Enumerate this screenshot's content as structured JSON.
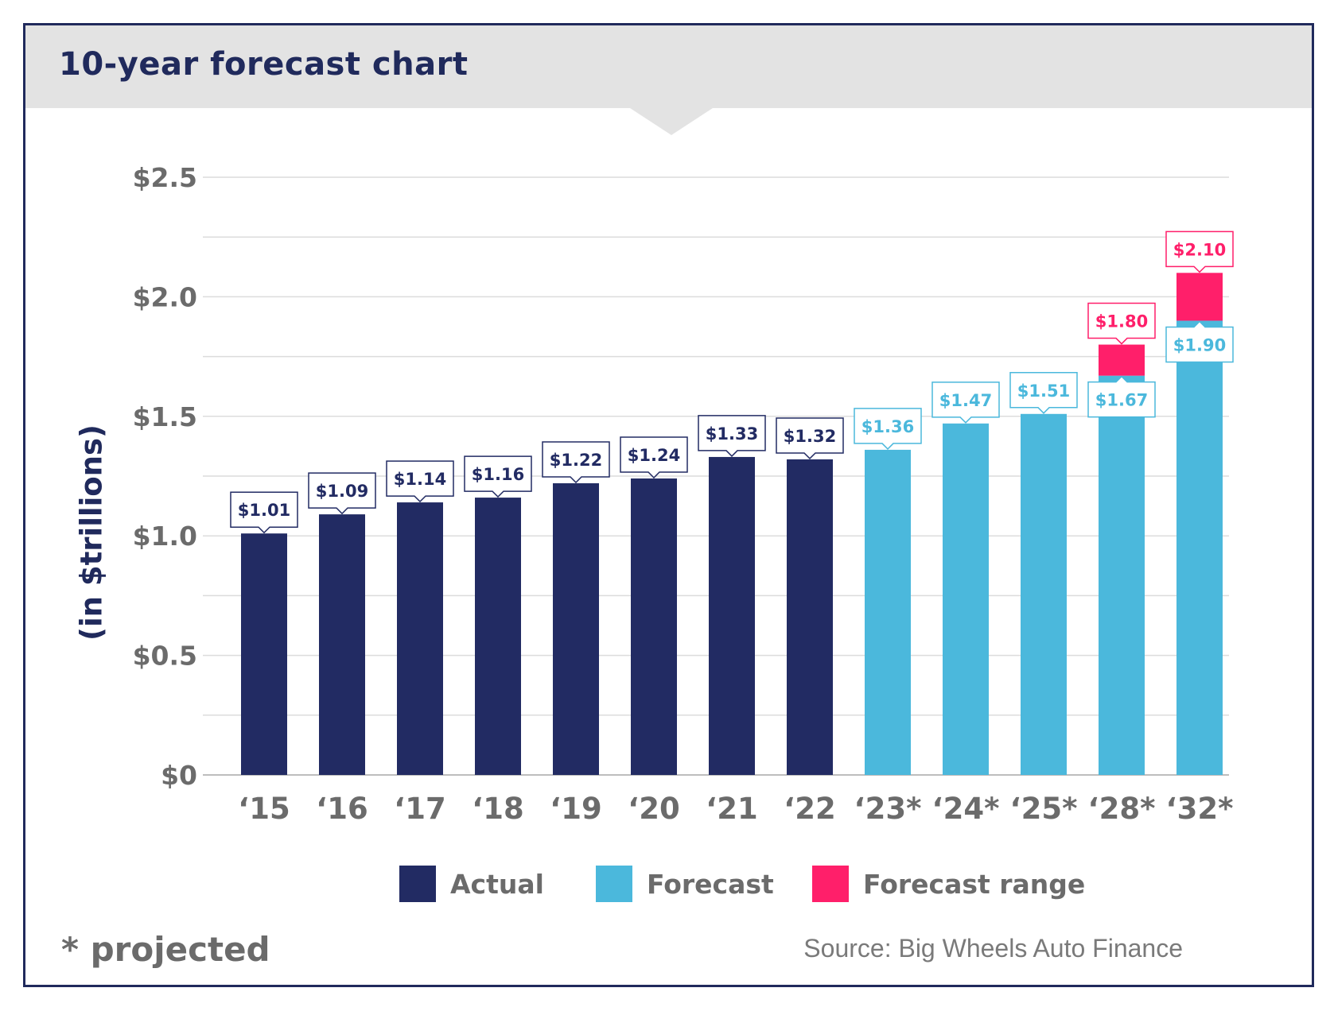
{
  "header": {
    "title": "10-year forecast chart"
  },
  "colors": {
    "actual": "#222b63",
    "forecast": "#4bb8dc",
    "range": "#ff1f6a",
    "grid": "#dcdcdc",
    "axis_text": "#6b6b6b"
  },
  "legend": {
    "actual": "Actual",
    "forecast": "Forecast",
    "range": "Forecast range"
  },
  "footnote": "* projected",
  "source": "Source: Big Wheels Auto Finance",
  "chart_data": {
    "type": "bar",
    "title": "10-year forecast chart",
    "ylabel": "(in $trillions)",
    "xlabel": "",
    "ylim": [
      0,
      2.5
    ],
    "y_ticks": [
      0,
      0.5,
      1.0,
      1.5,
      2.0,
      2.5
    ],
    "y_tick_labels": [
      "$0",
      "$0.5",
      "$1.0",
      "$1.5",
      "$2.0",
      "$2.5"
    ],
    "grid": true,
    "legend_position": "bottom",
    "categories": [
      "‘15",
      "‘16",
      "‘17",
      "‘18",
      "‘19",
      "‘20",
      "‘21",
      "‘22",
      "‘23*",
      "‘24*",
      "‘25*",
      "‘28*",
      "‘32*"
    ],
    "series": [
      {
        "name": "Actual",
        "values": [
          1.01,
          1.09,
          1.14,
          1.16,
          1.22,
          1.24,
          1.33,
          1.32,
          null,
          null,
          null,
          null,
          null
        ],
        "labels": [
          "$1.01",
          "$1.09",
          "$1.14",
          "$1.16",
          "$1.22",
          "$1.24",
          "$1.33",
          "$1.32",
          null,
          null,
          null,
          null,
          null
        ]
      },
      {
        "name": "Forecast",
        "values": [
          null,
          null,
          null,
          null,
          null,
          null,
          null,
          null,
          1.36,
          1.47,
          1.51,
          1.67,
          1.9
        ],
        "labels": [
          null,
          null,
          null,
          null,
          null,
          null,
          null,
          null,
          "$1.36",
          "$1.47",
          "$1.51",
          "$1.67",
          "$1.90"
        ]
      },
      {
        "name": "Forecast range",
        "values": [
          null,
          null,
          null,
          null,
          null,
          null,
          null,
          null,
          null,
          null,
          null,
          1.8,
          2.1
        ],
        "labels": [
          null,
          null,
          null,
          null,
          null,
          null,
          null,
          null,
          null,
          null,
          null,
          "$1.80",
          "$2.10"
        ]
      }
    ]
  }
}
